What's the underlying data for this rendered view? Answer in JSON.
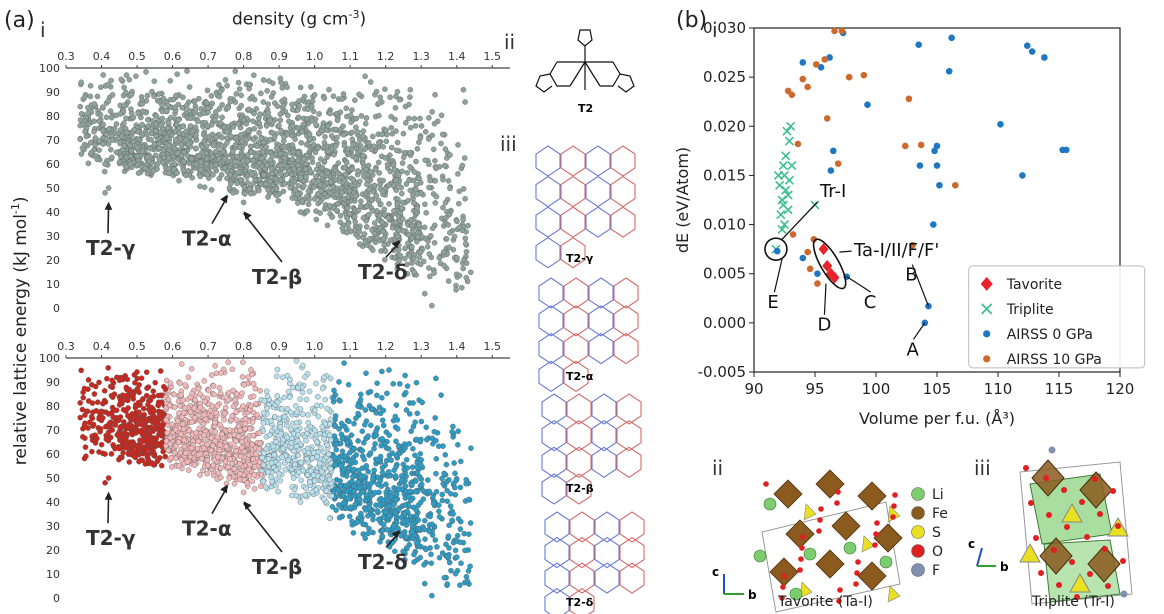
{
  "panel_a": {
    "label": "(a)",
    "sub_i": "i",
    "sub_ii": "ii",
    "sub_iii": "iii",
    "top_axis_label": "density (g cm",
    "top_axis_sup": "-3",
    "top_axis_close": ")",
    "y_axis_label": "relative lattice energy (kJ mol",
    "y_axis_sup": "-1",
    "y_axis_close": ")",
    "molecule_name": "T2",
    "structures": [
      "T2-γ",
      "T2-α",
      "T2-β",
      "T2-δ"
    ],
    "annotations": [
      "T2-γ",
      "T2-α",
      "T2-β",
      "T2-δ"
    ]
  },
  "panel_b": {
    "label": "(b)",
    "sub_i": "i",
    "sub_ii": "ii",
    "sub_iii": "iii",
    "annotations": {
      "tr": "Tr-I",
      "ta": "Ta-I/II/F/F'",
      "A": "A",
      "B": "B",
      "C": "C",
      "D": "D",
      "E": "E"
    },
    "elements_legend": [
      {
        "name": "Li",
        "color": "#7ccd6e"
      },
      {
        "name": "Fe",
        "color": "#8b5a1e"
      },
      {
        "name": "S",
        "color": "#e8e020"
      },
      {
        "name": "O",
        "color": "#e02020"
      },
      {
        "name": "F",
        "color": "#8090b0"
      }
    ],
    "caption_ii": "Tavorite (Ta-I)",
    "caption_iii": "Triplite (Tr-I)",
    "axis_c": "c",
    "axis_b": "b"
  },
  "chart_data": [
    {
      "type": "scatter",
      "xlabel": "density (g cm-3)",
      "ylabel": "relative lattice energy (kJ mol-1)",
      "xlim": [
        0.3,
        1.55
      ],
      "ylim": [
        0,
        100
      ],
      "x_ticks": [
        "0.3",
        "0.4",
        "0.5",
        "0.6",
        "0.7",
        "0.8",
        "0.9",
        "1.0",
        "1.1",
        "1.2",
        "1.3",
        "1.4",
        "1.5"
      ],
      "y_ticks": [
        "0",
        "10",
        "20",
        "30",
        "40",
        "50",
        "60",
        "70",
        "80",
        "90",
        "100"
      ],
      "marker_color": "#8fa39c",
      "annotations": [
        {
          "text": "T2-γ",
          "x": 0.42,
          "y": 48
        },
        {
          "text": "T2-α",
          "x": 0.76,
          "y": 50
        },
        {
          "text": "T2-β",
          "x": 0.8,
          "y": 44
        },
        {
          "text": "T2-δ",
          "x": 1.25,
          "y": 32
        }
      ]
    },
    {
      "type": "scatter",
      "ylabel": "relative lattice energy (kJ mol-1)",
      "xlim": [
        0.3,
        1.55
      ],
      "ylim": [
        0,
        100
      ],
      "x_ticks": [
        "0.3",
        "0.4",
        "0.5",
        "0.6",
        "0.7",
        "0.8",
        "0.9",
        "1.0",
        "1.1",
        "1.2",
        "1.3",
        "1.4",
        "1.5"
      ],
      "y_ticks": [
        "0",
        "10",
        "20",
        "30",
        "40",
        "50",
        "60",
        "70",
        "80",
        "90",
        "100"
      ],
      "color_scale": [
        "#c8281e",
        "#f0b8b8",
        "#b8e0ec",
        "#2e9cc4"
      ],
      "annotations": [
        {
          "text": "T2-γ",
          "x": 0.42,
          "y": 48
        },
        {
          "text": "T2-α",
          "x": 0.76,
          "y": 50
        },
        {
          "text": "T2-β",
          "x": 0.8,
          "y": 44
        },
        {
          "text": "T2-δ",
          "x": 1.25,
          "y": 38
        }
      ]
    },
    {
      "type": "scatter",
      "xlabel": "Volume per f.u. (Å³)",
      "ylabel": "dE (eV/Atom)",
      "xlim": [
        90,
        120
      ],
      "ylim": [
        -0.005,
        0.03
      ],
      "x_ticks": [
        "90",
        "95",
        "100",
        "105",
        "110",
        "115",
        "120"
      ],
      "y_ticks": [
        "-0.005",
        "0.000",
        "0.005",
        "0.010",
        "0.015",
        "0.020",
        "0.025",
        "0.030"
      ],
      "legend_position": "lower-right",
      "series": [
        {
          "name": "Tavorite",
          "color": "#e8242a",
          "marker": "diamond",
          "points": [
            [
              95.7,
              0.0075
            ],
            [
              96.0,
              0.0058
            ],
            [
              96.3,
              0.005
            ],
            [
              96.6,
              0.0046
            ]
          ]
        },
        {
          "name": "Triplite",
          "color": "#3fbf8f",
          "marker": "x",
          "points": [
            [
              91.8,
              0.0075
            ],
            [
              92.1,
              0.014
            ],
            [
              92.3,
              0.0125
            ],
            [
              92.4,
              0.016
            ],
            [
              92.5,
              0.015
            ],
            [
              92.6,
              0.0135
            ],
            [
              92.7,
              0.0195
            ],
            [
              92.8,
              0.013
            ],
            [
              92.9,
              0.0185
            ],
            [
              93.0,
              0.02
            ],
            [
              92.2,
              0.011
            ],
            [
              92.6,
              0.017
            ],
            [
              92.4,
              0.012
            ],
            [
              92.9,
              0.0145
            ],
            [
              93.1,
              0.016
            ],
            [
              92.0,
              0.015
            ],
            [
              92.5,
              0.01
            ],
            [
              92.8,
              0.0115
            ],
            [
              95.0,
              0.012
            ],
            [
              92.3,
              0.0095
            ]
          ]
        },
        {
          "name": "AIRSS 0 GPa",
          "color": "#1f77c4",
          "marker": "circle",
          "points": [
            [
              104.0,
              0.0
            ],
            [
              104.3,
              0.0017
            ],
            [
              97.6,
              0.0047
            ],
            [
              94.0,
              0.0066
            ],
            [
              95.2,
              0.005
            ],
            [
              91.9,
              0.0073
            ],
            [
              96.3,
              0.0155
            ],
            [
              96.5,
              0.0175
            ],
            [
              99.3,
              0.0222
            ],
            [
              103.6,
              0.016
            ],
            [
              104.8,
              0.0175
            ],
            [
              105.0,
              0.016
            ],
            [
              105.2,
              0.014
            ],
            [
              104.7,
              0.01
            ],
            [
              106.0,
              0.0256
            ],
            [
              103.5,
              0.0283
            ],
            [
              106.2,
              0.029
            ],
            [
              105.0,
              0.018
            ],
            [
              110.2,
              0.0202
            ],
            [
              112.0,
              0.015
            ],
            [
              112.4,
              0.0282
            ],
            [
              112.8,
              0.0276
            ],
            [
              113.8,
              0.027
            ],
            [
              115.3,
              0.0176
            ],
            [
              115.6,
              0.0176
            ],
            [
              96.2,
              0.027
            ],
            [
              97.3,
              0.0295
            ],
            [
              94.0,
              0.0265
            ],
            [
              95.5,
              0.026
            ]
          ]
        },
        {
          "name": "AIRSS 10 GPa",
          "color": "#cc6a2e",
          "marker": "circle",
          "points": [
            [
              93.2,
              0.009
            ],
            [
              92.8,
              0.0236
            ],
            [
              93.1,
              0.0232
            ],
            [
              94.0,
              0.0248
            ],
            [
              94.4,
              0.024
            ],
            [
              95.1,
              0.0263
            ],
            [
              95.8,
              0.0268
            ],
            [
              96.6,
              0.0297
            ],
            [
              97.2,
              0.0297
            ],
            [
              97.8,
              0.025
            ],
            [
              99.0,
              0.0252
            ],
            [
              96.9,
              0.0162
            ],
            [
              102.7,
              0.0228
            ],
            [
              102.4,
              0.018
            ],
            [
              103.7,
              0.0181
            ],
            [
              103.0,
              0.0079
            ],
            [
              94.9,
              0.0085
            ],
            [
              94.4,
              0.0072
            ],
            [
              94.6,
              0.0055
            ],
            [
              106.5,
              0.014
            ],
            [
              95.2,
              0.004
            ],
            [
              96.0,
              0.0208
            ],
            [
              93.6,
              0.0182
            ]
          ]
        }
      ],
      "annotations": [
        {
          "text": "Tr-I",
          "x": 91.8,
          "y": 0.0075
        },
        {
          "text": "Ta-I/II/F/F'",
          "x": 96.2,
          "y": 0.006
        },
        {
          "text": "A",
          "x": 104.0,
          "y": 0.0
        },
        {
          "text": "B",
          "x": 104.3,
          "y": 0.0017
        },
        {
          "text": "C",
          "x": 97.6,
          "y": 0.0047
        },
        {
          "text": "D",
          "x": 95.5,
          "y": 0.005
        },
        {
          "text": "E",
          "x": 91.9,
          "y": 0.0073
        }
      ]
    }
  ]
}
